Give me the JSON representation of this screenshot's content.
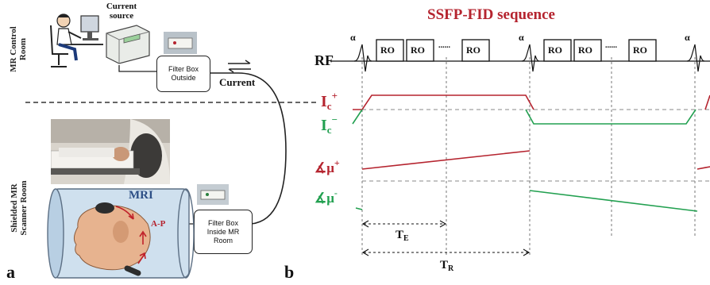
{
  "left": {
    "current_source": "Current\nsource",
    "control_room": "MR Control\nRoom",
    "scanner_room": "Shielded MR\nScanner Room",
    "filter_outside": "Filter Box\nOutside",
    "filter_inside": "Filter Box\nInside MR\nRoom",
    "current": "Current",
    "mri": "MRI",
    "ap": "A-P",
    "panel": "a"
  },
  "right": {
    "title": "SSFP-FID sequence",
    "rf": "RF",
    "alpha": "α",
    "ro": "RO",
    "dots": "......",
    "ic_plus": "I",
    "ic_plus_sub": "c",
    "ic_plus_sup": "+",
    "ic_minus": "I",
    "ic_minus_sub": "c",
    "ic_minus_sup": "−",
    "mu_plus": "∡μ",
    "mu_plus_sup": "+",
    "mu_minus": "∡μ",
    "mu_minus_sup": "-",
    "te": "T",
    "te_sub": "E",
    "tr": "T",
    "tr_sub": "R",
    "panel": "b"
  },
  "colors": {
    "red": "#b5242f",
    "green": "#22a050",
    "dark": "#111111"
  }
}
